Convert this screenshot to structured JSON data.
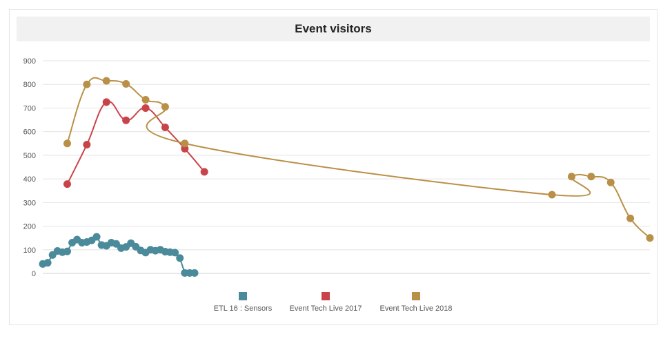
{
  "chart_data": {
    "type": "line",
    "title": "Event visitors",
    "ylim": [
      0,
      900
    ],
    "yticks": [
      0,
      100,
      200,
      300,
      400,
      500,
      600,
      700,
      800,
      900
    ],
    "grid": true,
    "legend_position": "bottom-center",
    "series": [
      {
        "name": "ETL 16 : Sensors",
        "color": "#4a8a9a",
        "smooth": false,
        "points": [
          [
            0,
            40
          ],
          [
            1,
            45
          ],
          [
            2,
            78
          ],
          [
            3,
            95
          ],
          [
            4,
            90
          ],
          [
            5,
            93
          ],
          [
            6,
            130
          ],
          [
            7,
            143
          ],
          [
            8,
            130
          ],
          [
            9,
            133
          ],
          [
            10,
            140
          ],
          [
            11,
            155
          ],
          [
            12,
            120
          ],
          [
            13,
            117
          ],
          [
            14,
            130
          ],
          [
            15,
            125
          ],
          [
            16,
            107
          ],
          [
            17,
            112
          ],
          [
            18,
            128
          ],
          [
            19,
            113
          ],
          [
            20,
            97
          ],
          [
            21,
            88
          ],
          [
            22,
            100
          ],
          [
            23,
            96
          ],
          [
            24,
            100
          ],
          [
            25,
            92
          ],
          [
            26,
            90
          ],
          [
            27,
            88
          ],
          [
            28,
            65
          ],
          [
            29,
            2
          ],
          [
            30,
            2
          ],
          [
            31,
            2
          ]
        ]
      },
      {
        "name": "Event Tech Live 2017",
        "color": "#c9444a",
        "smooth": true,
        "points": [
          [
            5,
            378
          ],
          [
            9,
            545
          ],
          [
            13,
            725
          ],
          [
            17,
            648
          ],
          [
            21,
            700
          ],
          [
            25,
            618
          ],
          [
            29,
            528
          ],
          [
            33,
            430
          ]
        ]
      },
      {
        "name": "Event Tech Live 2018",
        "color": "#b99047",
        "smooth": true,
        "points": [
          [
            5,
            550
          ],
          [
            9,
            800
          ],
          [
            13,
            815
          ],
          [
            17,
            802
          ],
          [
            21,
            735
          ],
          [
            25,
            705
          ],
          [
            29,
            550
          ],
          [
            104,
            333
          ],
          [
            108,
            410
          ],
          [
            112,
            410
          ],
          [
            116,
            385
          ],
          [
            120,
            233
          ],
          [
            124,
            150
          ]
        ]
      }
    ]
  }
}
